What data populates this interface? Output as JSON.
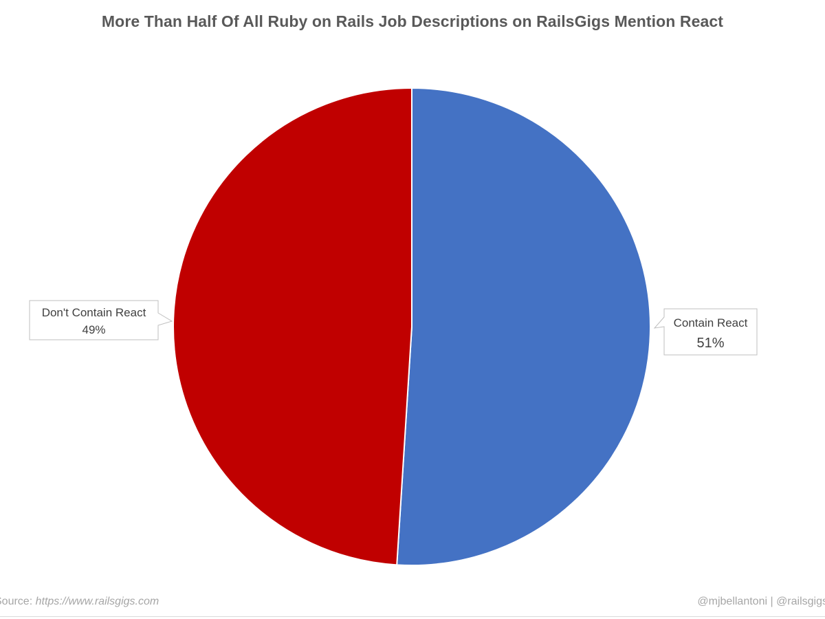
{
  "chart_data": {
    "type": "pie",
    "title": "More Than Half Of All Ruby on Rails Job Descriptions on RailsGigs Mention React",
    "slices": [
      {
        "label": "Contain React",
        "value": 51,
        "value_label": "51%",
        "color": "#4472C4"
      },
      {
        "label": "Don't Contain React",
        "value": 49,
        "value_label": "49%",
        "color": "#C00000"
      }
    ],
    "start": "12 o'clock",
    "direction": "clockwise"
  },
  "footer": {
    "source_prefix": "Source: ",
    "source_url": "https://www.railsgigs.com",
    "credit": "@mjbellantoni | @railsgigs"
  }
}
